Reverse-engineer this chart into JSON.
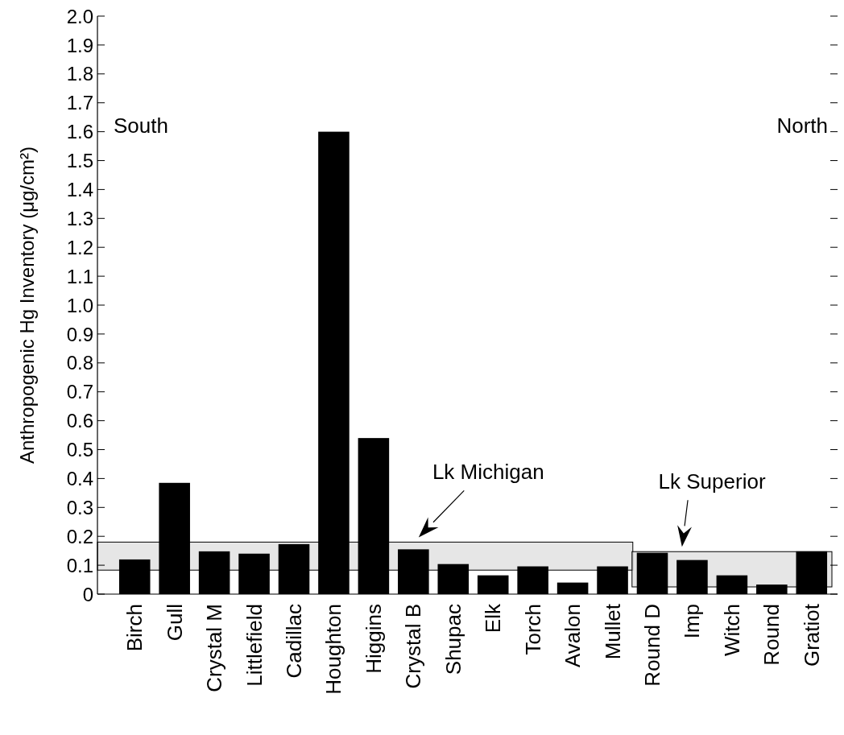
{
  "chart_data": {
    "type": "bar",
    "ylabel": "Anthropogenic Hg Inventory (μg/cm²)",
    "categories": [
      "Birch",
      "Gull",
      "Crystal M",
      "Littlefield",
      "Cadillac",
      "Houghton",
      "Higgins",
      "Crystal B",
      "Shupac",
      "Elk",
      "Torch",
      "Avalon",
      "Mullet",
      "Round D",
      "Imp",
      "Witch",
      "Round",
      "Gratiot"
    ],
    "values": [
      0.12,
      0.385,
      0.148,
      0.14,
      0.173,
      1.6,
      0.54,
      0.155,
      0.104,
      0.065,
      0.096,
      0.04,
      0.096,
      0.143,
      0.118,
      0.065,
      0.033,
      0.148
    ],
    "color": "#000000",
    "ylim": [
      0,
      2
    ],
    "yticks": [
      0,
      0.1,
      0.2,
      0.3,
      0.4,
      0.5,
      0.6,
      0.7,
      0.8,
      0.9,
      {
        "value": 1,
        "label": "1.0"
      },
      1.1,
      1.2,
      1.3,
      1.4,
      1.5,
      1.6,
      1.7,
      1.8,
      1.9,
      {
        "value": 2,
        "label": "2.0"
      }
    ],
    "bands": [
      {
        "axis": "y",
        "from": 0.083,
        "to": 0.18,
        "label": "Lk Michigan",
        "color": "#dddddd"
      },
      {
        "axis": "y",
        "from": 0.025,
        "to": 0.147,
        "label": "Lk Superior",
        "color": "#dddddd"
      }
    ],
    "annotations": [
      "South",
      "North"
    ],
    "grid": false
  }
}
